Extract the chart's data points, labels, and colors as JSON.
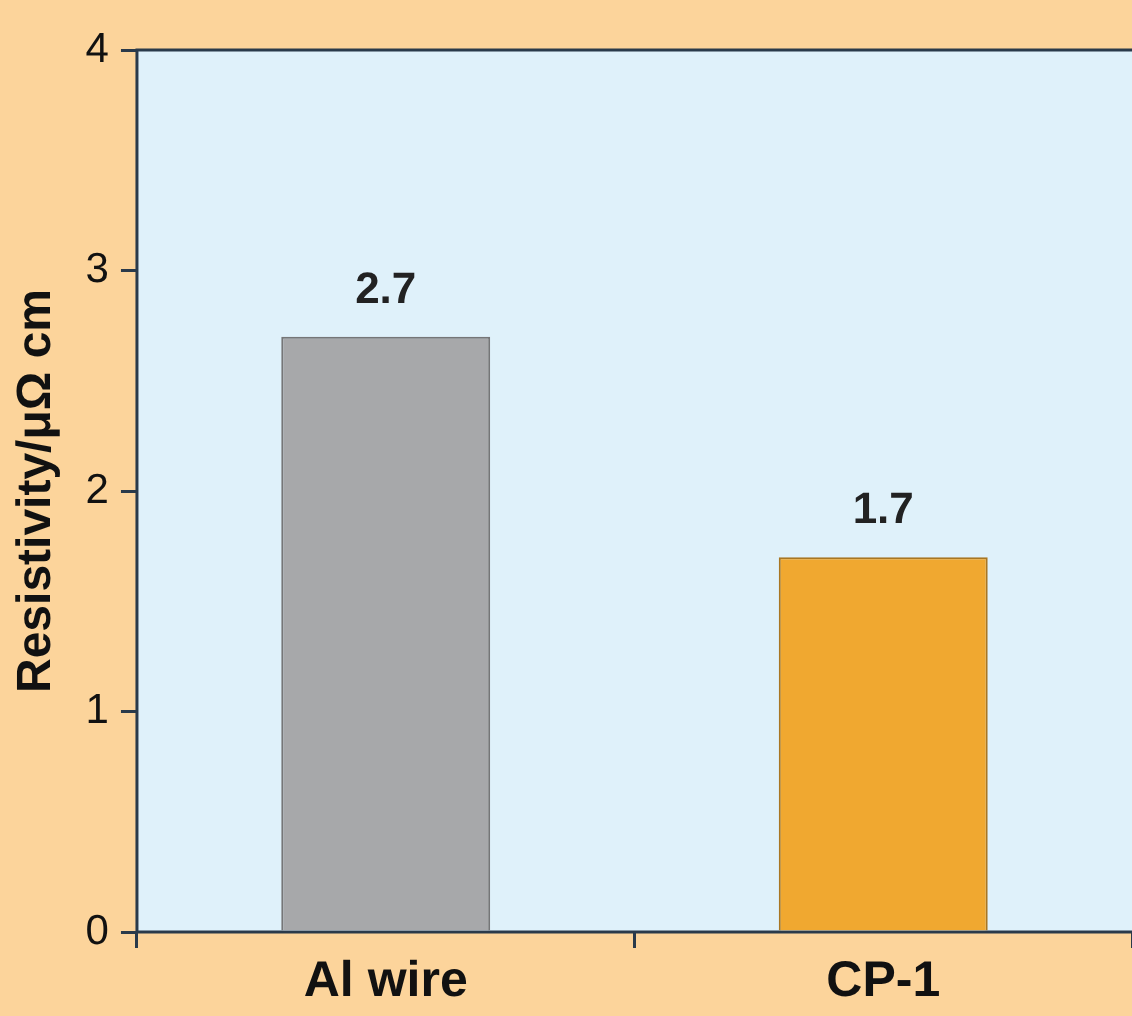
{
  "chart_data": {
    "type": "bar",
    "ylabel": "Resistivity/μΩ cm",
    "categories": [
      "Al wire",
      "CP-1"
    ],
    "values": [
      2.7,
      1.7
    ],
    "colors": [
      "#a7a8aa",
      "#f0a830"
    ],
    "ylim": [
      0,
      4
    ],
    "yticks": [
      0,
      1,
      2,
      3,
      4
    ],
    "grid": false,
    "legend": false,
    "data_labels": true
  }
}
